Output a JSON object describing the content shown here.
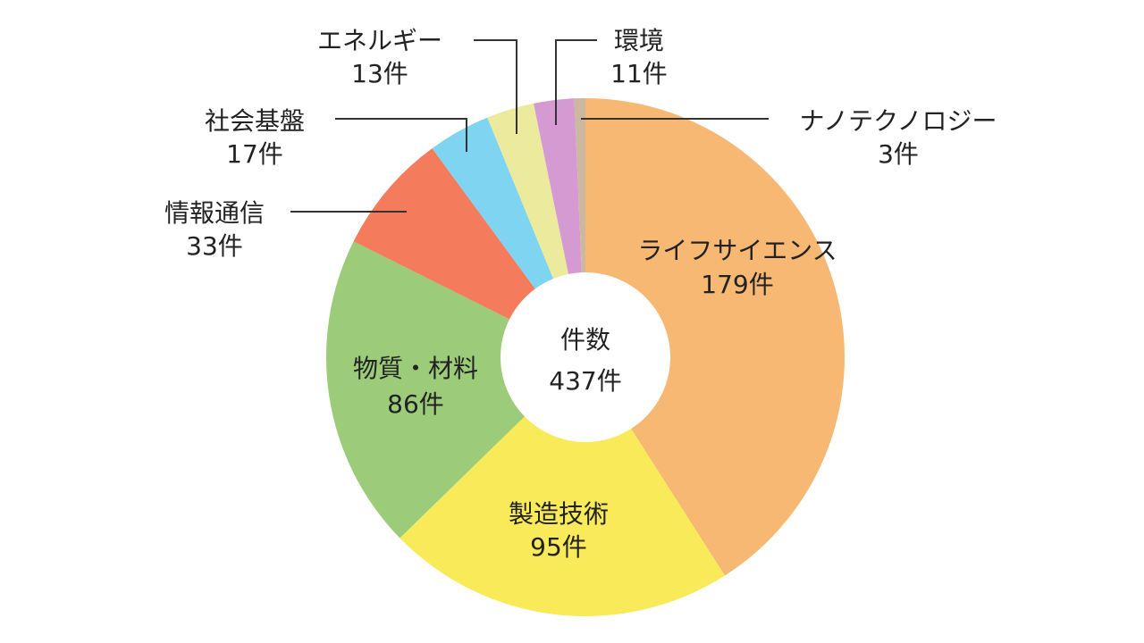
{
  "chart_data": {
    "type": "donut",
    "categories": [
      "ライフサイエンス",
      "製造技術",
      "物質・材料",
      "情報通信",
      "社会基盤",
      "エネルギー",
      "環境",
      "ナノテクノロジー"
    ],
    "values": [
      179,
      95,
      86,
      33,
      17,
      13,
      11,
      3
    ],
    "value_labels": [
      "179件",
      "95件",
      "86件",
      "33件",
      "17件",
      "13件",
      "11件",
      "3件"
    ],
    "colors": [
      "#f6b872",
      "#f9ea5a",
      "#9ccc7a",
      "#f47b5c",
      "#7fd4f2",
      "#ecea9c",
      "#d59ad2",
      "#cbb89e"
    ],
    "center_text": [
      "件数",
      "437件"
    ]
  }
}
